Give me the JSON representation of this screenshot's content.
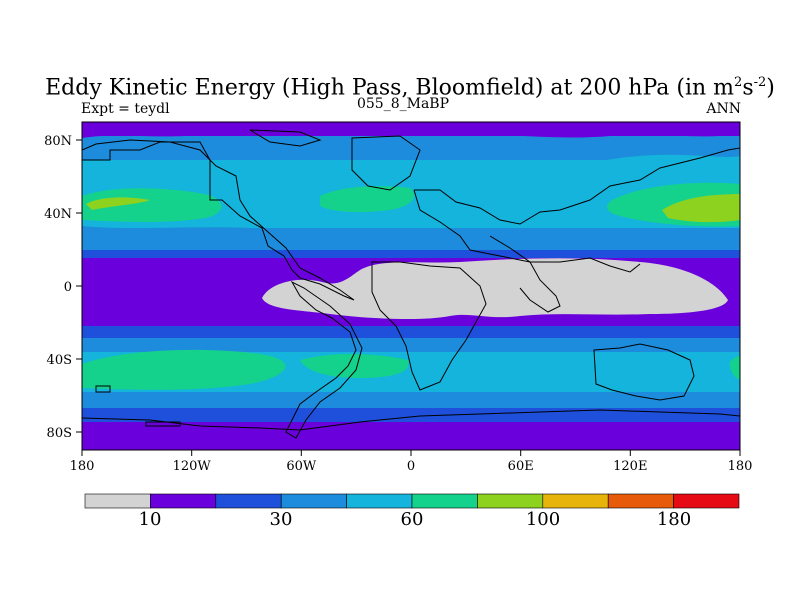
{
  "title": {
    "main": "Eddy Kinetic Energy (High Pass, Bloomfield) at 200 hPa (in m",
    "sup1": "2",
    "mid": "s",
    "sup2": "-2",
    "close": ")"
  },
  "subtitle_left": "Expt = teydl",
  "subtitle_center": "055_8_MaBP",
  "subtitle_right": "ANN",
  "x_ticks": [
    "180",
    "120W",
    "60W",
    "0",
    "60E",
    "120E",
    "180"
  ],
  "y_ticks": [
    "80N",
    "40N",
    "0",
    "40S",
    "80S"
  ],
  "colorbar": {
    "colors": [
      "#d3d3d3",
      "#6a00dc",
      "#1e50dc",
      "#1e8cdc",
      "#14b4dc",
      "#14d28c",
      "#8cd21e",
      "#e6b40a",
      "#e65a0a",
      "#e60a14"
    ],
    "labels": [
      "10",
      "30",
      "60",
      "100",
      "180"
    ]
  }
}
